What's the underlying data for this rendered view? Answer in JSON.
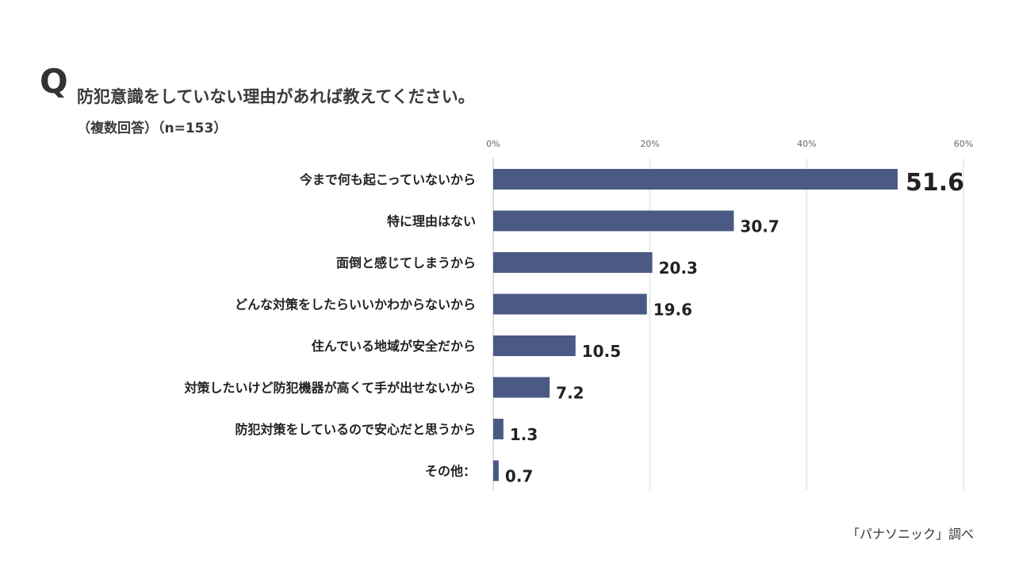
{
  "header": {
    "q_mark": "Q",
    "question": "防犯意識をしていない理由があれば教えてください。",
    "note": "（複数回答）（n=153）"
  },
  "footer": {
    "source": "「パナソニック」調べ"
  },
  "colors": {
    "bar": "#4a5a85",
    "grid": "#d9d9d9",
    "axis": "#bfbfbf"
  },
  "chart_data": {
    "type": "bar",
    "orientation": "horizontal",
    "categories": [
      "今まで何も起こっていないから",
      "特に理由はない",
      "面倒と感じてしまうから",
      "どんな対策をしたらいいかわからないから",
      "住んでいる地域が安全だから",
      "対策したいけど防犯機器が高くて手が出せないから",
      "防犯対策をしているので安心だと思うから",
      "その他："
    ],
    "values": [
      51.6,
      30.7,
      20.3,
      19.6,
      10.5,
      7.2,
      1.3,
      0.7
    ],
    "value_labels": [
      "51.6",
      "30.7",
      "20.3",
      "19.6",
      "10.5",
      "7.2",
      "1.3",
      "0.7"
    ],
    "xlim": [
      0,
      60
    ],
    "xticks": [
      0,
      20,
      40,
      60
    ],
    "xtick_labels": [
      "0%",
      "20%",
      "40%",
      "60%"
    ],
    "xtick_position": "top",
    "grid": true,
    "legend": "none"
  }
}
